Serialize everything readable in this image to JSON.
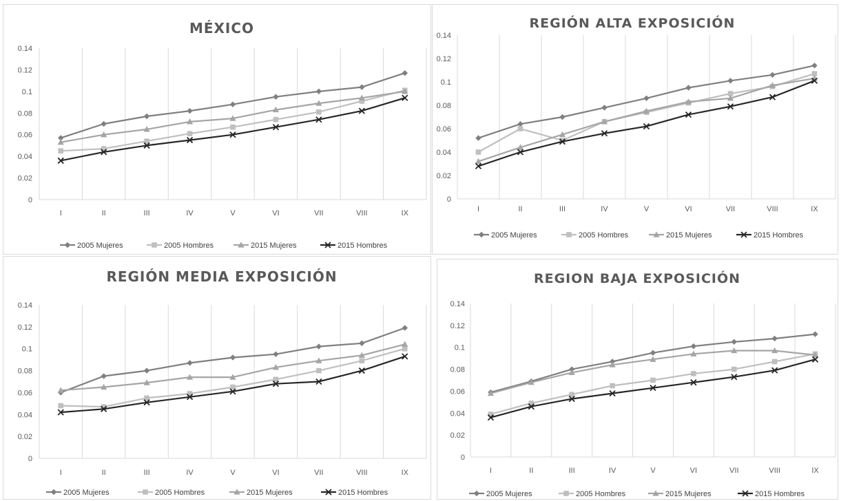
{
  "chart_data": [
    {
      "type": "line",
      "title": "MÉXICO",
      "categories": [
        "I",
        "II",
        "III",
        "IV",
        "V",
        "VI",
        "VII",
        "VIII",
        "IX"
      ],
      "yticks": [
        "0",
        "0.02",
        "0.04",
        "0.06",
        "0.08",
        "0.1",
        "0.12",
        "0.14"
      ],
      "ylim": [
        0,
        0.14
      ],
      "grid": "vertical",
      "legend": "bottom",
      "series": [
        {
          "name": "2005 Mujeres",
          "marker": "diamond",
          "color": "#7f7f7f",
          "values": [
            0.057,
            0.07,
            0.077,
            0.082,
            0.088,
            0.095,
            0.1,
            0.104,
            0.117
          ]
        },
        {
          "name": "2005 Hombres",
          "marker": "square",
          "color": "#bfbfbf",
          "values": [
            0.045,
            0.047,
            0.054,
            0.061,
            0.067,
            0.074,
            0.081,
            0.091,
            0.101
          ]
        },
        {
          "name": "2015 Mujeres",
          "marker": "triangle",
          "color": "#a5a5a5",
          "values": [
            0.053,
            0.06,
            0.065,
            0.072,
            0.075,
            0.083,
            0.089,
            0.094,
            0.1
          ]
        },
        {
          "name": "2015 Hombres",
          "marker": "x",
          "color": "#262626",
          "values": [
            0.036,
            0.044,
            0.05,
            0.055,
            0.06,
            0.067,
            0.074,
            0.082,
            0.094
          ]
        }
      ]
    },
    {
      "type": "line",
      "title": "REGIÓN ALTA EXPOSICIÓN",
      "categories": [
        "I",
        "II",
        "III",
        "IV",
        "V",
        "VI",
        "VII",
        "VIII",
        "IX"
      ],
      "yticks": [
        "0",
        "0.02",
        "0.04",
        "0.06",
        "0.08",
        "0.1",
        "0.12",
        "0.14"
      ],
      "ylim": [
        0,
        0.14
      ],
      "grid": "vertical",
      "legend": "bottom",
      "series": [
        {
          "name": "2005 Mujeres",
          "marker": "diamond",
          "color": "#7f7f7f",
          "values": [
            0.052,
            0.064,
            0.07,
            0.078,
            0.086,
            0.095,
            0.101,
            0.106,
            0.114
          ]
        },
        {
          "name": "2005 Hombres",
          "marker": "square",
          "color": "#bfbfbf",
          "values": [
            0.04,
            0.06,
            0.05,
            0.066,
            0.074,
            0.082,
            0.09,
            0.096,
            0.107
          ]
        },
        {
          "name": "2015 Mujeres",
          "marker": "triangle",
          "color": "#a5a5a5",
          "values": [
            0.032,
            0.044,
            0.055,
            0.066,
            0.075,
            0.083,
            0.086,
            0.097,
            0.103
          ]
        },
        {
          "name": "2015 Hombres",
          "marker": "x",
          "color": "#262626",
          "values": [
            0.028,
            0.04,
            0.049,
            0.056,
            0.062,
            0.072,
            0.079,
            0.087,
            0.101
          ]
        }
      ]
    },
    {
      "type": "line",
      "title": "REGIÓN MEDIA EXPOSICIÓN",
      "categories": [
        "I",
        "II",
        "III",
        "IV",
        "V",
        "VI",
        "VII",
        "VIII",
        "IX"
      ],
      "yticks": [
        "0",
        "0.02",
        "0.04",
        "0.06",
        "0.08",
        "0.1",
        "0.12",
        "0.14"
      ],
      "ylim": [
        0,
        0.14
      ],
      "grid": "vertical",
      "legend": "bottom",
      "series": [
        {
          "name": "2005 Mujeres",
          "marker": "diamond",
          "color": "#7f7f7f",
          "values": [
            0.06,
            0.075,
            0.08,
            0.087,
            0.092,
            0.095,
            0.102,
            0.105,
            0.119
          ]
        },
        {
          "name": "2005 Hombres",
          "marker": "square",
          "color": "#bfbfbf",
          "values": [
            0.048,
            0.047,
            0.055,
            0.059,
            0.065,
            0.072,
            0.08,
            0.089,
            0.1
          ]
        },
        {
          "name": "2015 Mujeres",
          "marker": "triangle",
          "color": "#a5a5a5",
          "values": [
            0.062,
            0.065,
            0.069,
            0.074,
            0.074,
            0.083,
            0.089,
            0.094,
            0.104
          ]
        },
        {
          "name": "2015 Hombres",
          "marker": "x",
          "color": "#262626",
          "values": [
            0.042,
            0.045,
            0.051,
            0.056,
            0.061,
            0.068,
            0.07,
            0.08,
            0.093
          ]
        }
      ]
    },
    {
      "type": "line",
      "title": "REGION BAJA EXPOSICIÓN",
      "categories": [
        "I",
        "II",
        "III",
        "IV",
        "V",
        "VI",
        "VII",
        "VIII",
        "IX"
      ],
      "yticks": [
        "0",
        "0.02",
        "0.04",
        "0.06",
        "0.08",
        "0.1",
        "0.12",
        "0.14"
      ],
      "ylim": [
        0,
        0.14
      ],
      "grid": "vertical",
      "legend": "bottom",
      "series": [
        {
          "name": "2005 Mujeres",
          "marker": "diamond",
          "color": "#7f7f7f",
          "values": [
            0.059,
            0.069,
            0.08,
            0.087,
            0.095,
            0.101,
            0.105,
            0.108,
            0.112
          ]
        },
        {
          "name": "2005 Hombres",
          "marker": "square",
          "color": "#bfbfbf",
          "values": [
            0.039,
            0.049,
            0.057,
            0.065,
            0.07,
            0.076,
            0.08,
            0.087,
            0.094
          ]
        },
        {
          "name": "2015 Mujeres",
          "marker": "triangle",
          "color": "#a5a5a5",
          "values": [
            0.058,
            0.068,
            0.077,
            0.084,
            0.089,
            0.094,
            0.097,
            0.097,
            0.093
          ]
        },
        {
          "name": "2015 Hombres",
          "marker": "x",
          "color": "#262626",
          "values": [
            0.036,
            0.046,
            0.053,
            0.058,
            0.063,
            0.068,
            0.073,
            0.079,
            0.089
          ]
        }
      ]
    }
  ]
}
